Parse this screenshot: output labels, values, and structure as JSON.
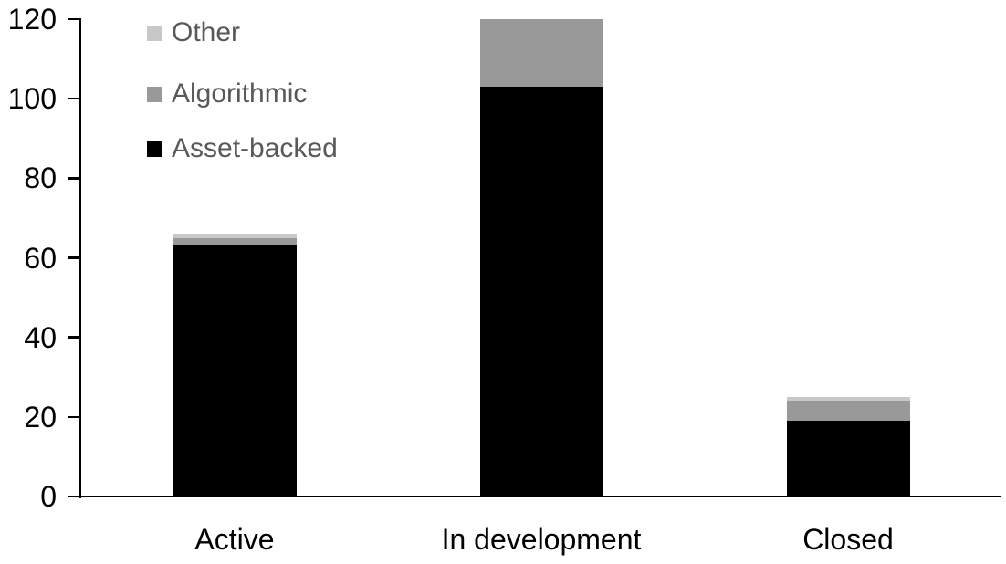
{
  "chart_data": {
    "type": "bar",
    "stacked": true,
    "title": "",
    "xlabel": "",
    "ylabel": "",
    "grid": false,
    "background_color": "#ffffff",
    "categories": [
      "Active",
      "In development",
      "Closed"
    ],
    "series": [
      {
        "name": "Asset-backed",
        "color": "#000000",
        "values": [
          63,
          103,
          19
        ]
      },
      {
        "name": "Algorithmic",
        "color": "#999999",
        "values": [
          2,
          17,
          5
        ]
      },
      {
        "name": "Other",
        "color": "#c8c8c8",
        "values": [
          1,
          0,
          1
        ]
      }
    ],
    "totals": [
      66,
      120,
      25
    ],
    "ylim": [
      0,
      120
    ],
    "yticks": [
      0,
      20,
      40,
      60,
      80,
      100,
      120
    ],
    "legend": {
      "position": "top-left",
      "entries": [
        "Other",
        "Algorithmic",
        "Asset-backed"
      ],
      "text_color": "#595959"
    },
    "axis": {
      "line_color": "#000000",
      "tick_color": "#000000",
      "label_color": "#000000"
    }
  }
}
